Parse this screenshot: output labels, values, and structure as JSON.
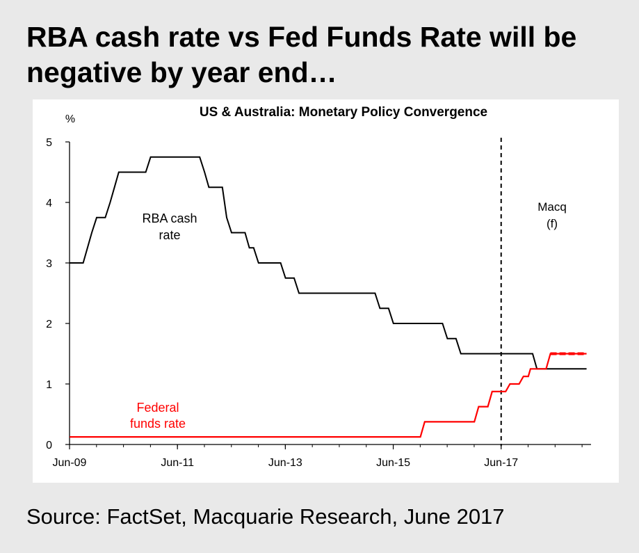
{
  "slide": {
    "title": "RBA cash rate vs Fed Funds Rate will be negative by year end…",
    "source": "Source: FactSet, Macquarie Research, June 2017"
  },
  "chart_data": {
    "type": "line",
    "title": "US & Australia: Monetary Policy Convergence",
    "ylabel": "%",
    "xlabel": "",
    "ylim": [
      0,
      5
    ],
    "xlim": [
      2009.417,
      2019.083
    ],
    "yticks": [
      0,
      1,
      2,
      3,
      4,
      5
    ],
    "xtick_labels": [
      {
        "label": "Jun-09",
        "x": 2009.417
      },
      {
        "label": "Jun-11",
        "x": 2011.417
      },
      {
        "label": "Jun-13",
        "x": 2013.417
      },
      {
        "label": "Jun-15",
        "x": 2015.417
      },
      {
        "label": "Jun-17",
        "x": 2017.417
      }
    ],
    "forecast_start": 2017.417,
    "forecast_label": [
      "Macq",
      "(f)"
    ],
    "series": [
      {
        "name": "RBA cash rate",
        "label_lines": [
          "RBA cash",
          "rate"
        ],
        "color": "#000000",
        "points": [
          [
            2009.42,
            3.0
          ],
          [
            2009.67,
            3.0
          ],
          [
            2009.75,
            3.25
          ],
          [
            2009.83,
            3.5
          ],
          [
            2009.92,
            3.75
          ],
          [
            2010.08,
            3.75
          ],
          [
            2010.17,
            4.0
          ],
          [
            2010.25,
            4.25
          ],
          [
            2010.33,
            4.5
          ],
          [
            2010.83,
            4.5
          ],
          [
            2010.92,
            4.75
          ],
          [
            2011.83,
            4.75
          ],
          [
            2011.92,
            4.5
          ],
          [
            2012.0,
            4.25
          ],
          [
            2012.25,
            4.25
          ],
          [
            2012.33,
            3.75
          ],
          [
            2012.42,
            3.5
          ],
          [
            2012.67,
            3.5
          ],
          [
            2012.75,
            3.25
          ],
          [
            2012.83,
            3.25
          ],
          [
            2012.92,
            3.0
          ],
          [
            2013.33,
            3.0
          ],
          [
            2013.42,
            2.75
          ],
          [
            2013.58,
            2.75
          ],
          [
            2013.67,
            2.5
          ],
          [
            2015.08,
            2.5
          ],
          [
            2015.17,
            2.25
          ],
          [
            2015.33,
            2.25
          ],
          [
            2015.42,
            2.0
          ],
          [
            2016.33,
            2.0
          ],
          [
            2016.42,
            1.75
          ],
          [
            2016.58,
            1.75
          ],
          [
            2016.67,
            1.5
          ],
          [
            2018.0,
            1.5
          ],
          [
            2018.08,
            1.25
          ],
          [
            2019.0,
            1.25
          ]
        ]
      },
      {
        "name": "Federal funds rate",
        "label_lines": [
          "Federal",
          "funds rate"
        ],
        "color": "#ff0000",
        "points": [
          [
            2009.42,
            0.125
          ],
          [
            2015.92,
            0.125
          ],
          [
            2016.0,
            0.375
          ],
          [
            2016.92,
            0.375
          ],
          [
            2017.0,
            0.625
          ],
          [
            2017.17,
            0.625
          ],
          [
            2017.25,
            0.875
          ],
          [
            2017.42,
            0.875
          ],
          [
            2017.5,
            0.875
          ],
          [
            2017.58,
            1.0
          ],
          [
            2017.75,
            1.0
          ],
          [
            2017.83,
            1.125
          ],
          [
            2017.92,
            1.125
          ],
          [
            2017.96,
            1.25
          ],
          [
            2018.25,
            1.25
          ],
          [
            2018.33,
            1.5
          ],
          [
            2019.0,
            1.5
          ]
        ],
        "forecast_points": [
          [
            2017.42,
            0.875
          ],
          [
            2017.92,
            1.25
          ],
          [
            2018.33,
            1.5
          ],
          [
            2019.0,
            1.5
          ]
        ]
      }
    ]
  }
}
